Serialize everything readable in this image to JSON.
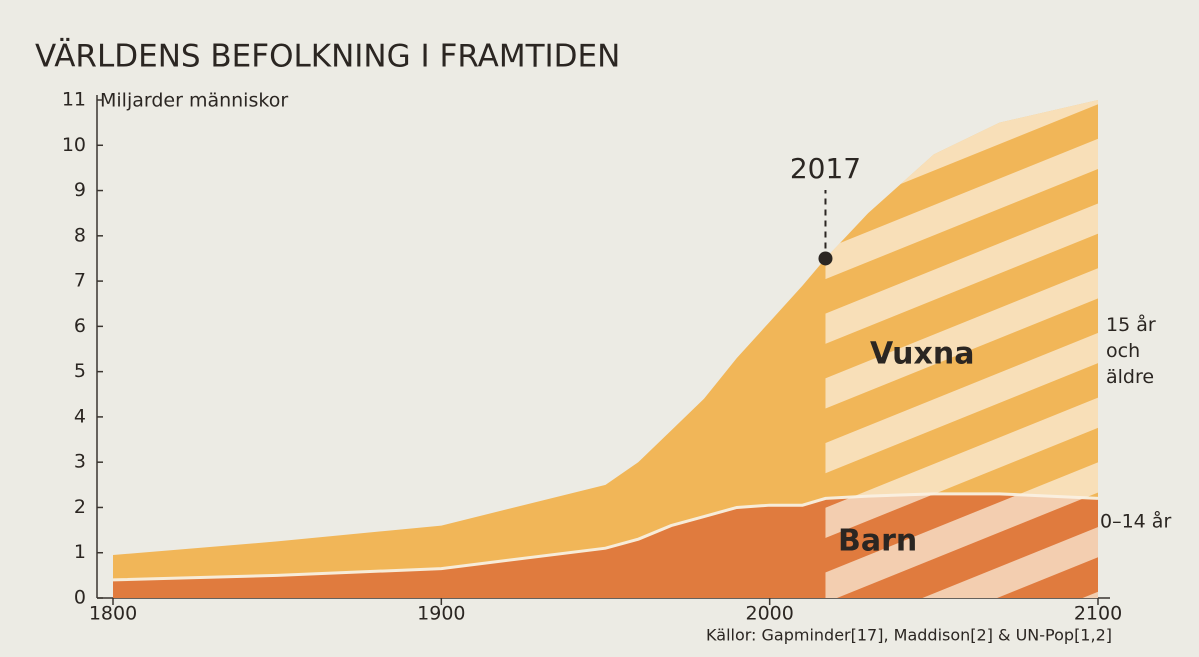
{
  "chart_data": {
    "type": "stacked-area",
    "title": "VÄRLDENS BEFOLKNING I FRAMTIDEN",
    "y_label": "Miljarder människor",
    "source": "Källor: Gapminder[17], Maddison[2] & UN-Pop[1,2]",
    "x": [
      1800,
      1850,
      1900,
      1950,
      1960,
      1970,
      1980,
      1990,
      2000,
      2010,
      2017,
      2030,
      2050,
      2070,
      2100
    ],
    "series": [
      {
        "name": "Barn",
        "color": "#e07b3e",
        "description": [
          "0–14 år"
        ],
        "values": [
          0.4,
          0.5,
          0.65,
          1.1,
          1.3,
          1.6,
          1.8,
          2.0,
          2.05,
          2.05,
          2.2,
          2.25,
          2.3,
          2.3,
          2.2
        ]
      },
      {
        "name": "Vuxna",
        "color": "#f1b658",
        "description": [
          "15 år",
          "och",
          "äldre"
        ],
        "values": [
          0.55,
          0.75,
          0.95,
          1.4,
          1.7,
          2.1,
          2.6,
          3.3,
          4.05,
          4.85,
          5.3,
          6.25,
          7.5,
          8.2,
          8.8
        ]
      }
    ],
    "annotation": {
      "x": 2017,
      "y": 7.5
    },
    "xlim": [
      1800,
      2100
    ],
    "xticks": [
      1800,
      1900,
      2000,
      2100
    ],
    "ylim": [
      0,
      11
    ],
    "yticks": [
      0,
      1,
      2,
      3,
      4,
      5,
      6,
      7,
      8,
      9,
      10,
      11
    ]
  }
}
